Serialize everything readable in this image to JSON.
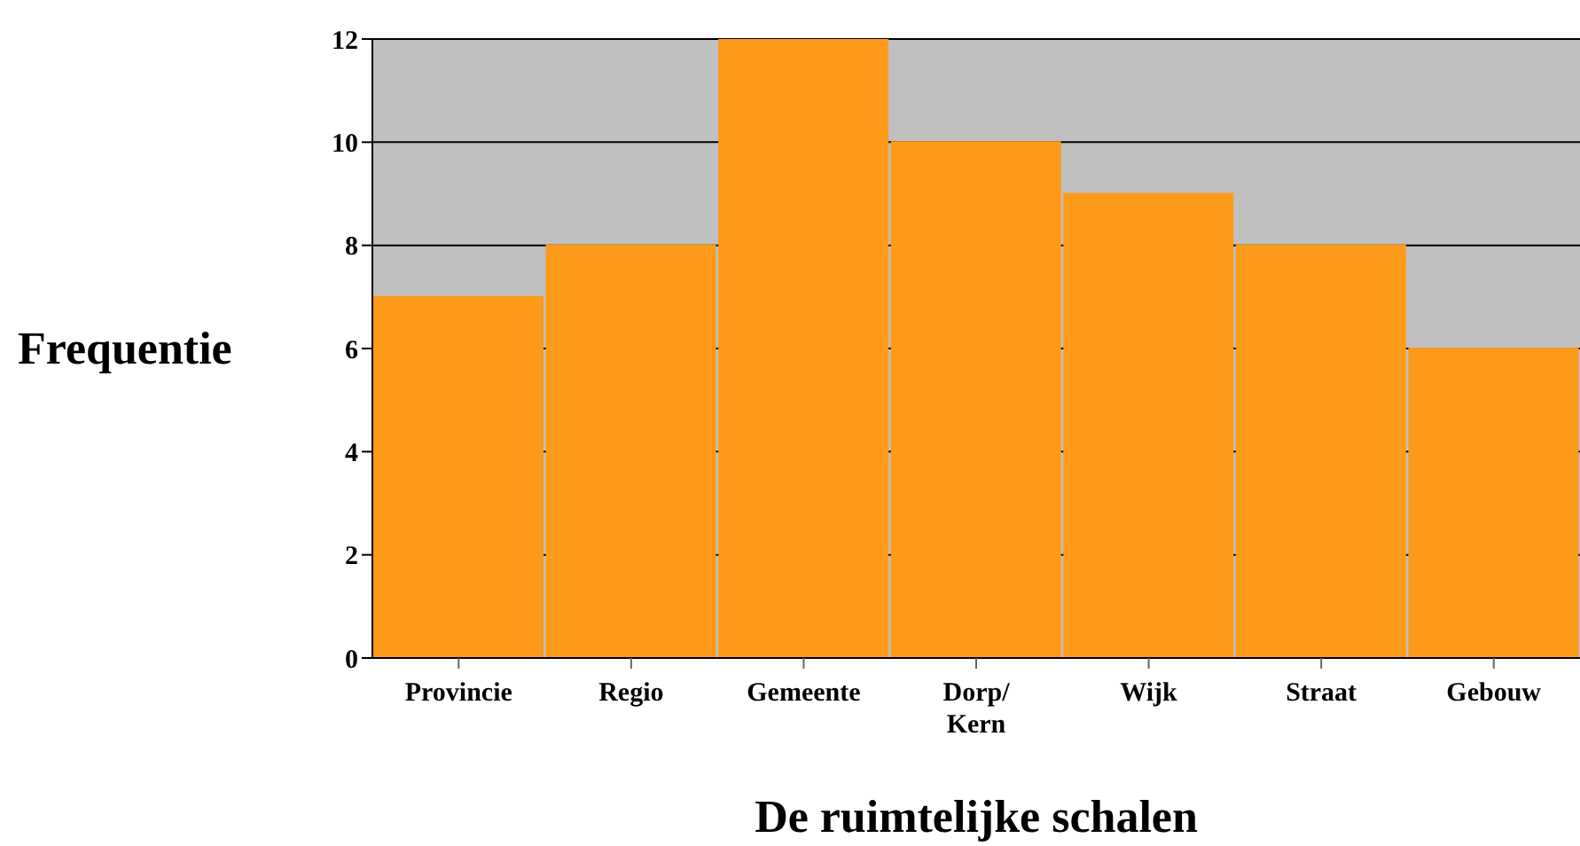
{
  "chart_data": {
    "type": "bar",
    "xlabel": "De ruimtelijke schalen",
    "ylabel": "Frequentie",
    "categories": [
      "Provincie",
      "Regio",
      "Gemeente",
      "Dorp/ Kern",
      "Wijk",
      "Straat",
      "Gebouw"
    ],
    "values": [
      7,
      8,
      12,
      10,
      9,
      8,
      6
    ],
    "color": "#ff9a1a",
    "ylim": [
      0,
      12
    ],
    "yticks": [
      0,
      2,
      4,
      6,
      8,
      10,
      12
    ],
    "grid": "y"
  }
}
